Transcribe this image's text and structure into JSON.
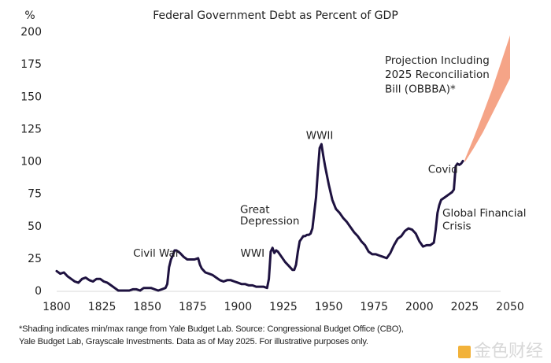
{
  "chart_data": {
    "type": "line",
    "title": "Federal Government Debt as Percent of GDP",
    "ylabel": "%",
    "xlabel": "",
    "xlim": [
      1800,
      2050
    ],
    "ylim": [
      0,
      200
    ],
    "grid": false,
    "x_ticks": [
      "1800",
      "1825",
      "1850",
      "1875",
      "1900",
      "1925",
      "1950",
      "1975",
      "2000",
      "2025",
      "2050"
    ],
    "y_ticks": [
      "0",
      "25",
      "50",
      "75",
      "100",
      "125",
      "150",
      "175",
      "200"
    ],
    "series": [
      {
        "name": "Federal debt (% of GDP)",
        "color": "#1e1240",
        "x": [
          1800,
          1802,
          1804,
          1806,
          1808,
          1810,
          1812,
          1814,
          1816,
          1818,
          1820,
          1822,
          1824,
          1826,
          1828,
          1830,
          1832,
          1834,
          1836,
          1838,
          1840,
          1842,
          1844,
          1846,
          1848,
          1850,
          1852,
          1854,
          1856,
          1858,
          1860,
          1861,
          1862,
          1863,
          1864,
          1865,
          1866,
          1867,
          1868,
          1870,
          1872,
          1874,
          1876,
          1878,
          1879,
          1880,
          1882,
          1884,
          1886,
          1888,
          1890,
          1892,
          1894,
          1896,
          1898,
          1900,
          1902,
          1904,
          1906,
          1908,
          1910,
          1912,
          1914,
          1916,
          1917,
          1918,
          1919,
          1920,
          1921,
          1922,
          1924,
          1926,
          1928,
          1930,
          1931,
          1932,
          1933,
          1934,
          1935,
          1936,
          1937,
          1938,
          1939,
          1940,
          1941,
          1942,
          1943,
          1944,
          1945,
          1946,
          1947,
          1948,
          1950,
          1952,
          1954,
          1956,
          1958,
          1960,
          1962,
          1964,
          1966,
          1968,
          1970,
          1972,
          1974,
          1976,
          1978,
          1980,
          1982,
          1984,
          1986,
          1988,
          1990,
          1992,
          1994,
          1996,
          1998,
          2000,
          2002,
          2004,
          2006,
          2008,
          2009,
          2010,
          2011,
          2012,
          2014,
          2016,
          2018,
          2019,
          2020,
          2021,
          2022,
          2023,
          2024
        ],
        "values": [
          15,
          13,
          14,
          11,
          9,
          7,
          6,
          9,
          10,
          8,
          7,
          9,
          9,
          7,
          6,
          4,
          2,
          0,
          0,
          0,
          0,
          1,
          1,
          0,
          2,
          2,
          2,
          1,
          0,
          1,
          2,
          5,
          18,
          24,
          27,
          31,
          31,
          30,
          29,
          26,
          24,
          24,
          24,
          25,
          20,
          17,
          14,
          13,
          12,
          10,
          8,
          7,
          8,
          8,
          7,
          6,
          5,
          5,
          4,
          4,
          3,
          3,
          3,
          2,
          9,
          30,
          33,
          29,
          31,
          30,
          26,
          22,
          19,
          16,
          16,
          20,
          30,
          38,
          40,
          42,
          42,
          43,
          43,
          44,
          48,
          60,
          72,
          92,
          110,
          113,
          104,
          96,
          82,
          70,
          63,
          60,
          56,
          53,
          49,
          45,
          42,
          38,
          35,
          30,
          28,
          28,
          27,
          26,
          25,
          29,
          35,
          40,
          42,
          46,
          48,
          47,
          44,
          38,
          34,
          35,
          35,
          37,
          47,
          60,
          66,
          70,
          72,
          74,
          76,
          78,
          96,
          98,
          97,
          98,
          100
        ]
      },
      {
        "name": "Projection Including 2025 Reconciliation Bill (OBBBA)* — min/max range",
        "type": "area",
        "color": "#f5a487",
        "x": [
          2025,
          2030,
          2035,
          2040,
          2045,
          2050
        ],
        "min": [
          99,
          110,
          122,
          136,
          150,
          164
        ],
        "max": [
          101,
          118,
          136,
          155,
          176,
          197
        ]
      }
    ],
    "annotations": [
      {
        "text": "Civil War",
        "x": 1855,
        "y": 26
      },
      {
        "text": "WWI",
        "x": 1908,
        "y": 26
      },
      {
        "text": "Great",
        "x": 1922,
        "y": 60
      },
      {
        "text": "Depression",
        "x": 1925,
        "y": 51
      },
      {
        "text": "WWII",
        "x": 1945,
        "y": 117
      },
      {
        "text": "Covid",
        "x": 2013,
        "y": 91
      },
      {
        "text": "Global Financial",
        "x": 2020,
        "y": 57
      },
      {
        "text": "Crisis",
        "x": 2016,
        "y": 47
      },
      {
        "text": "Projection Including",
        "x": 2035,
        "y": 175
      },
      {
        "text": "2025 Reconciliation",
        "x": 2035,
        "y": 164
      },
      {
        "text": "Bill (OBBBA)*",
        "x": 2030,
        "y": 153
      }
    ]
  },
  "footnote": {
    "line1": "*Shading indicates min/max range from Yale Budget Lab. Source: Congressional Budget Office (CBO),",
    "line2": "Yale Budget Lab, Grayscale Investments. Data as of May 2025. For illustrative purposes only."
  },
  "watermark": "金色财经"
}
